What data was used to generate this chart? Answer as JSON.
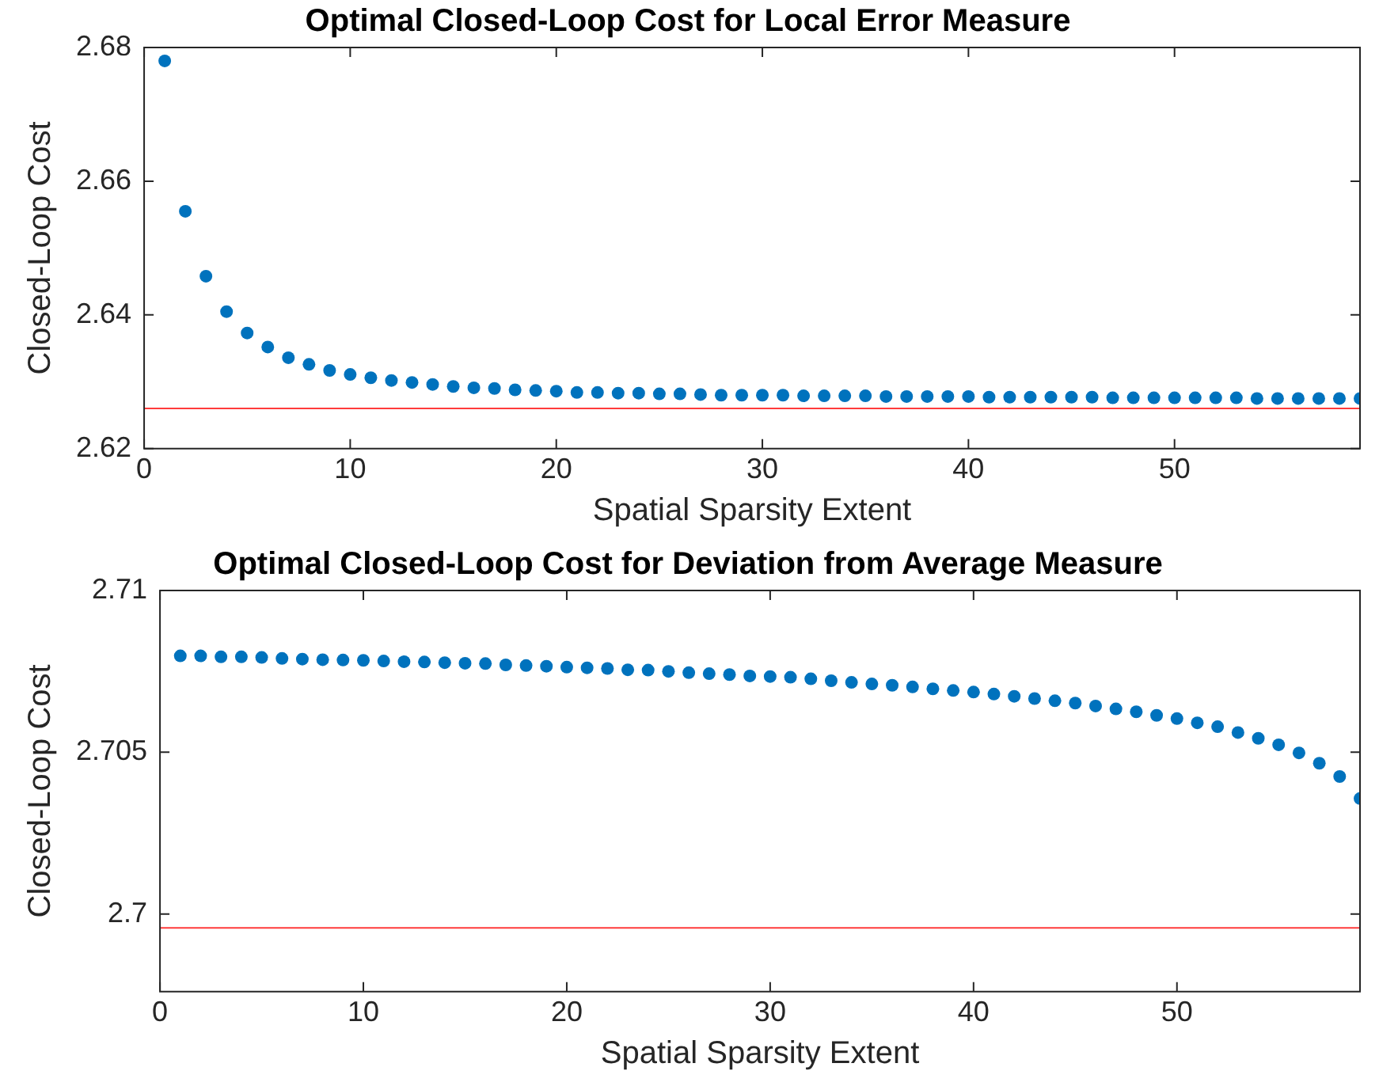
{
  "chart_data": [
    {
      "type": "scatter",
      "title": "Optimal Closed-Loop Cost for Local Error Measure",
      "xlabel": "Spatial Sparsity Extent",
      "ylabel": "Closed-Loop Cost",
      "marker": "circle",
      "grid": false,
      "xlim": [
        0,
        59
      ],
      "xticks": [
        0,
        10,
        20,
        30,
        40,
        50
      ],
      "ylim": [
        2.62,
        2.68
      ],
      "yticks": [
        2.62,
        2.64,
        2.66,
        2.68
      ],
      "x": [
        1,
        2,
        3,
        4,
        5,
        6,
        7,
        8,
        9,
        10,
        11,
        12,
        13,
        14,
        15,
        16,
        17,
        18,
        19,
        20,
        21,
        22,
        23,
        24,
        25,
        26,
        27,
        28,
        29,
        30,
        31,
        32,
        33,
        34,
        35,
        36,
        37,
        38,
        39,
        40,
        41,
        42,
        43,
        44,
        45,
        46,
        47,
        48,
        49,
        50,
        51,
        52,
        53,
        54,
        55,
        56,
        57,
        58,
        59
      ],
      "series": [
        {
          "color": "#0072bd",
          "values": [
            2.678,
            2.6555,
            2.6458,
            2.6405,
            2.6373,
            2.6352,
            2.6336,
            2.6326,
            2.6317,
            2.6311,
            2.6306,
            2.6302,
            2.6299,
            2.6296,
            2.6293,
            2.6291,
            2.629,
            2.6288,
            2.6287,
            2.6286,
            2.6284,
            2.6284,
            2.6283,
            2.6283,
            2.6282,
            2.6282,
            2.6281,
            2.628,
            2.628,
            2.628,
            2.628,
            2.6279,
            2.6279,
            2.6279,
            2.6279,
            2.6278,
            2.6278,
            2.6278,
            2.6278,
            2.6278,
            2.6277,
            2.6277,
            2.6277,
            2.6277,
            2.6277,
            2.6277,
            2.6276,
            2.6276,
            2.6276,
            2.6276,
            2.6276,
            2.6276,
            2.6276,
            2.6275,
            2.6275,
            2.6275,
            2.6275,
            2.6275,
            2.6275
          ]
        }
      ],
      "ref_lines": [
        {
          "axis": "y",
          "value": 2.626,
          "color": "#ff3b3b"
        }
      ]
    },
    {
      "type": "scatter",
      "title": "Optimal Closed-Loop Cost for Deviation from Average Measure",
      "xlabel": "Spatial Sparsity Extent",
      "ylabel": "Closed-Loop Cost",
      "marker": "circle",
      "grid": false,
      "xlim": [
        0,
        59
      ],
      "xticks": [
        0,
        10,
        20,
        30,
        40,
        50
      ],
      "ylim": [
        2.6976,
        2.71
      ],
      "yticks": [
        2.7,
        2.705,
        2.71
      ],
      "x": [
        1,
        2,
        3,
        4,
        5,
        6,
        7,
        8,
        9,
        10,
        11,
        12,
        13,
        14,
        15,
        16,
        17,
        18,
        19,
        20,
        21,
        22,
        23,
        24,
        25,
        26,
        27,
        28,
        29,
        30,
        31,
        32,
        33,
        34,
        35,
        36,
        37,
        38,
        39,
        40,
        41,
        42,
        43,
        44,
        45,
        46,
        47,
        48,
        49,
        50,
        51,
        52,
        53,
        54,
        55,
        56,
        57,
        58,
        59
      ],
      "series": [
        {
          "color": "#0072bd",
          "values": [
            2.70798,
            2.70798,
            2.70795,
            2.70795,
            2.70793,
            2.7079,
            2.70788,
            2.70786,
            2.70785,
            2.70784,
            2.70782,
            2.7078,
            2.70779,
            2.70777,
            2.70775,
            2.70774,
            2.7077,
            2.70768,
            2.70766,
            2.70763,
            2.70761,
            2.70759,
            2.70755,
            2.70754,
            2.7075,
            2.70746,
            2.70743,
            2.7074,
            2.70736,
            2.70734,
            2.70732,
            2.70727,
            2.70721,
            2.70716,
            2.70711,
            2.70707,
            2.70702,
            2.70696,
            2.70691,
            2.70686,
            2.7068,
            2.70673,
            2.70666,
            2.70659,
            2.70652,
            2.70643,
            2.70634,
            2.70625,
            2.70614,
            2.70604,
            2.70591,
            2.70579,
            2.70561,
            2.70543,
            2.70523,
            2.70498,
            2.70466,
            2.70425,
            2.70357
          ]
        }
      ],
      "ref_lines": [
        {
          "axis": "y",
          "value": 2.69957,
          "color": "#ff3b3b"
        }
      ]
    }
  ]
}
